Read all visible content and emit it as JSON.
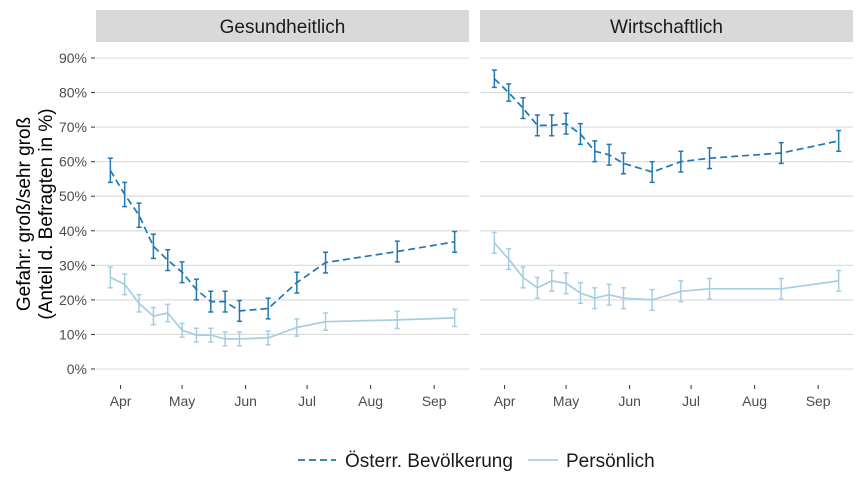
{
  "chart_data": {
    "type": "line",
    "ylabel_line1": "Gefahr: groß/sehr groß",
    "ylabel_line2": "(Anteil d. Befragten in %)",
    "y_ticks": [
      "0%",
      "10%",
      "20%",
      "30%",
      "40%",
      "50%",
      "60%",
      "70%",
      "80%",
      "90%"
    ],
    "ylim": [
      0,
      90
    ],
    "x_ticks": [
      "Apr",
      "May",
      "Jun",
      "Jul",
      "Aug",
      "Sep"
    ],
    "grid": true,
    "legend_position": "bottom",
    "colors": {
      "dark": "#1f78b4",
      "light": "#a6cee3",
      "strip": "#d9d9d9",
      "grid": "#d9d9d9"
    },
    "legend": [
      {
        "label": "Österr. Bevölkerung",
        "style": "dashed",
        "color": "#1f78b4"
      },
      {
        "label": "Persönlich",
        "style": "solid",
        "color": "#a6cee3"
      }
    ],
    "panels": [
      {
        "title": "Gesundheitlich",
        "series": [
          {
            "name": "Österr. Bevölkerung",
            "style": "dashed",
            "x": [
              "2020-03-27",
              "2020-04-03",
              "2020-04-10",
              "2020-04-17",
              "2020-04-24",
              "2020-05-01",
              "2020-05-08",
              "2020-05-15",
              "2020-05-22",
              "2020-05-29",
              "2020-06-12",
              "2020-06-26",
              "2020-07-10",
              "2020-08-14",
              "2020-09-11"
            ],
            "y": [
              57.5,
              50.5,
              44.5,
              35.5,
              31.5,
              28.0,
              23.0,
              19.5,
              19.5,
              16.8,
              17.5,
              25.0,
              30.8,
              34.0,
              36.8
            ],
            "err": [
              3.5,
              3.5,
              3.5,
              3.5,
              3.0,
              3.0,
              3.0,
              3.0,
              3.0,
              3.0,
              3.0,
              3.0,
              3.0,
              3.0,
              3.0
            ]
          },
          {
            "name": "Persönlich",
            "style": "solid",
            "x": [
              "2020-03-27",
              "2020-04-03",
              "2020-04-10",
              "2020-04-17",
              "2020-04-24",
              "2020-05-01",
              "2020-05-08",
              "2020-05-15",
              "2020-05-22",
              "2020-05-29",
              "2020-06-12",
              "2020-06-26",
              "2020-07-10",
              "2020-08-14",
              "2020-09-11"
            ],
            "y": [
              26.5,
              24.5,
              19.0,
              15.3,
              16.2,
              11.2,
              9.8,
              9.8,
              8.7,
              8.7,
              9.0,
              12.0,
              13.7,
              14.2,
              14.8
            ],
            "err": [
              3.0,
              3.0,
              2.5,
              2.5,
              2.5,
              2.0,
              2.0,
              2.0,
              2.0,
              2.0,
              2.0,
              2.5,
              2.5,
              2.5,
              2.5
            ]
          }
        ]
      },
      {
        "title": "Wirtschaftlich",
        "series": [
          {
            "name": "Österr. Bevölkerung",
            "style": "dashed",
            "x": [
              "2020-03-27",
              "2020-04-03",
              "2020-04-10",
              "2020-04-17",
              "2020-04-24",
              "2020-05-01",
              "2020-05-08",
              "2020-05-15",
              "2020-05-22",
              "2020-05-29",
              "2020-06-12",
              "2020-06-26",
              "2020-07-10",
              "2020-08-14",
              "2020-09-11"
            ],
            "y": [
              84.0,
              80.0,
              75.5,
              70.5,
              70.5,
              71.0,
              68.0,
              63.0,
              62.0,
              59.5,
              57.0,
              60.0,
              61.0,
              62.5,
              66.0
            ],
            "err": [
              2.5,
              2.5,
              3.0,
              3.0,
              3.0,
              3.0,
              3.0,
              3.0,
              3.0,
              3.0,
              3.0,
              3.0,
              3.0,
              3.0,
              3.0
            ]
          },
          {
            "name": "Persönlich",
            "style": "solid",
            "x": [
              "2020-03-27",
              "2020-04-03",
              "2020-04-10",
              "2020-04-17",
              "2020-04-24",
              "2020-05-01",
              "2020-05-08",
              "2020-05-15",
              "2020-05-22",
              "2020-05-29",
              "2020-06-12",
              "2020-06-26",
              "2020-07-10",
              "2020-08-14",
              "2020-09-11"
            ],
            "y": [
              36.5,
              31.8,
              26.5,
              23.5,
              25.5,
              24.8,
              22.0,
              20.5,
              21.5,
              20.5,
              20.0,
              22.5,
              23.2,
              23.2,
              25.5
            ],
            "err": [
              3.0,
              3.0,
              3.0,
              3.0,
              3.0,
              3.0,
              3.0,
              3.0,
              3.0,
              3.0,
              3.0,
              3.0,
              3.0,
              3.0,
              3.0
            ]
          }
        ]
      }
    ]
  }
}
